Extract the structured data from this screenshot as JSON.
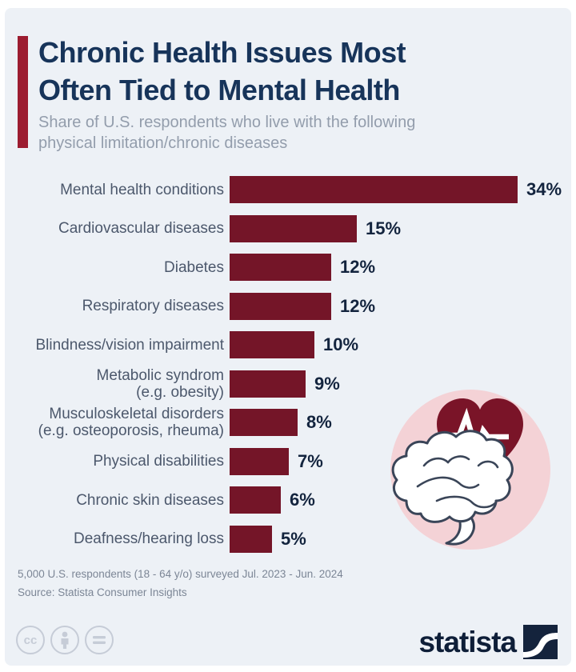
{
  "header": {
    "title_lines": [
      "Chronic Health Issues Most",
      "Often Tied to Mental Health"
    ],
    "subtitle_lines": [
      "Share of U.S. respondents who live with the following",
      "physical limitation/chronic diseases"
    ]
  },
  "chart_data": {
    "type": "bar",
    "orientation": "horizontal",
    "title": "Chronic Health Issues Most Often Tied to Mental Health",
    "subtitle": "Share of U.S. respondents who live with the following physical limitation/chronic diseases",
    "categories": [
      "Mental health conditions",
      "Cardiovascular diseases",
      "Diabetes",
      "Respiratory diseases",
      "Blindness/vision impairment",
      "Metabolic syndrom (e.g. obesity)",
      "Musculoskeletal disorders (e.g. osteoporosis, rheuma)",
      "Physical disabilities",
      "Chronic skin diseases",
      "Deafness/hearing loss"
    ],
    "category_lines": [
      [
        "Mental health conditions"
      ],
      [
        "Cardiovascular diseases"
      ],
      [
        "Diabetes"
      ],
      [
        "Respiratory diseases"
      ],
      [
        "Blindness/vision impairment"
      ],
      [
        "Metabolic syndrom",
        "(e.g. obesity)"
      ],
      [
        "Musculoskeletal disorders",
        "(e.g. osteoporosis, rheuma)"
      ],
      [
        "Physical disabilities"
      ],
      [
        "Chronic skin diseases"
      ],
      [
        "Deafness/hearing loss"
      ]
    ],
    "values": [
      34,
      15,
      12,
      12,
      10,
      9,
      8,
      7,
      6,
      5
    ],
    "value_labels": [
      "34%",
      "15%",
      "12%",
      "12%",
      "10%",
      "9%",
      "8%",
      "7%",
      "6%",
      "5%"
    ],
    "unit": "%",
    "xlim": [
      0,
      34
    ],
    "grid": false,
    "legend": false,
    "bar_color": "#741528"
  },
  "colors": {
    "background_card": "#edf1f6",
    "accent_bar": "#9c1c30",
    "bar": "#741528",
    "title": "#17345a",
    "category_label": "#4c586c",
    "value_label": "#13243e",
    "subtitle": "#939dac",
    "footnote": "#7c8696",
    "heart": "#7a1428",
    "illustration_circle": "#f4d2d6",
    "brand": "#0e1e38"
  },
  "footer": {
    "footnote_line1": "5,000 U.S. respondents (18 - 64 y/o) surveyed Jul. 2023 - Jun. 2024",
    "footnote_line2": "Source: Statista Consumer Insights",
    "license_icons": [
      "cc-icon",
      "attribution-person-icon",
      "equals-icon"
    ],
    "brand_text": "statista"
  },
  "illustration": {
    "icons": [
      "brain-icon",
      "heart-icon",
      "heartbeat-line-icon"
    ]
  }
}
